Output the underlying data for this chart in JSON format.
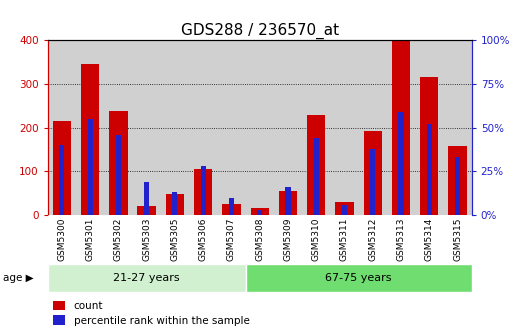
{
  "title": "GDS288 / 236570_at",
  "samples": [
    "GSM5300",
    "GSM5301",
    "GSM5302",
    "GSM5303",
    "GSM5305",
    "GSM5306",
    "GSM5307",
    "GSM5308",
    "GSM5309",
    "GSM5310",
    "GSM5311",
    "GSM5312",
    "GSM5313",
    "GSM5314",
    "GSM5315"
  ],
  "count_values": [
    215,
    345,
    238,
    20,
    48,
    105,
    25,
    15,
    55,
    228,
    30,
    193,
    400,
    315,
    158
  ],
  "percentile_values": [
    40,
    55,
    46,
    19,
    13,
    28,
    10,
    3,
    16,
    44,
    6,
    38,
    59,
    52,
    33
  ],
  "group1_label": "21-27 years",
  "group2_label": "67-75 years",
  "group1_count": 7,
  "group2_count": 8,
  "count_color": "#cc0000",
  "percentile_color": "#2222cc",
  "ylim_left": [
    0,
    400
  ],
  "ylim_right": [
    0,
    100
  ],
  "yticks_left": [
    0,
    100,
    200,
    300,
    400
  ],
  "yticks_right": [
    0,
    25,
    50,
    75,
    100
  ],
  "bar_bg_color": "#d0d0d0",
  "group1_bg": "#d0f0d0",
  "group2_bg": "#70dd70",
  "age_label": "age",
  "legend_count": "count",
  "legend_percentile": "percentile rank within the sample",
  "title_fontsize": 11,
  "tick_fontsize": 7.5
}
